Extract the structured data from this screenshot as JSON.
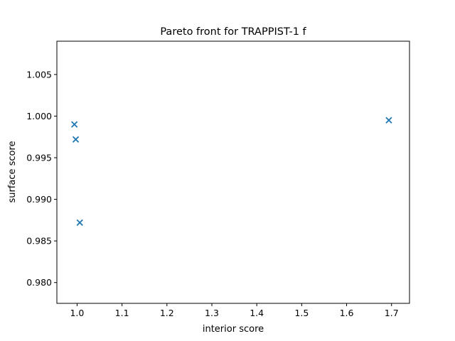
{
  "chart_data": {
    "type": "scatter",
    "title": "Pareto front for TRAPPIST-1 f",
    "xlabel": "interior score",
    "ylabel": "surface score",
    "xlim": [
      0.955,
      1.74
    ],
    "ylim": [
      0.9775,
      1.009
    ],
    "xticks": [
      1.0,
      1.1,
      1.2,
      1.3,
      1.4,
      1.5,
      1.6,
      1.7
    ],
    "xtick_labels": [
      "1.0",
      "1.1",
      "1.2",
      "1.3",
      "1.4",
      "1.5",
      "1.6",
      "1.7"
    ],
    "yticks": [
      0.98,
      0.985,
      0.99,
      0.995,
      1.0,
      1.005
    ],
    "ytick_labels": [
      "0.980",
      "0.985",
      "0.990",
      "0.995",
      "1.000",
      "1.005"
    ],
    "grid": false,
    "marker": "x",
    "color": "#1f77b4",
    "points": [
      {
        "x": 0.994,
        "y": 0.999
      },
      {
        "x": 0.997,
        "y": 0.9972
      },
      {
        "x": 1.006,
        "y": 0.9872
      },
      {
        "x": 1.694,
        "y": 0.9995
      }
    ]
  }
}
